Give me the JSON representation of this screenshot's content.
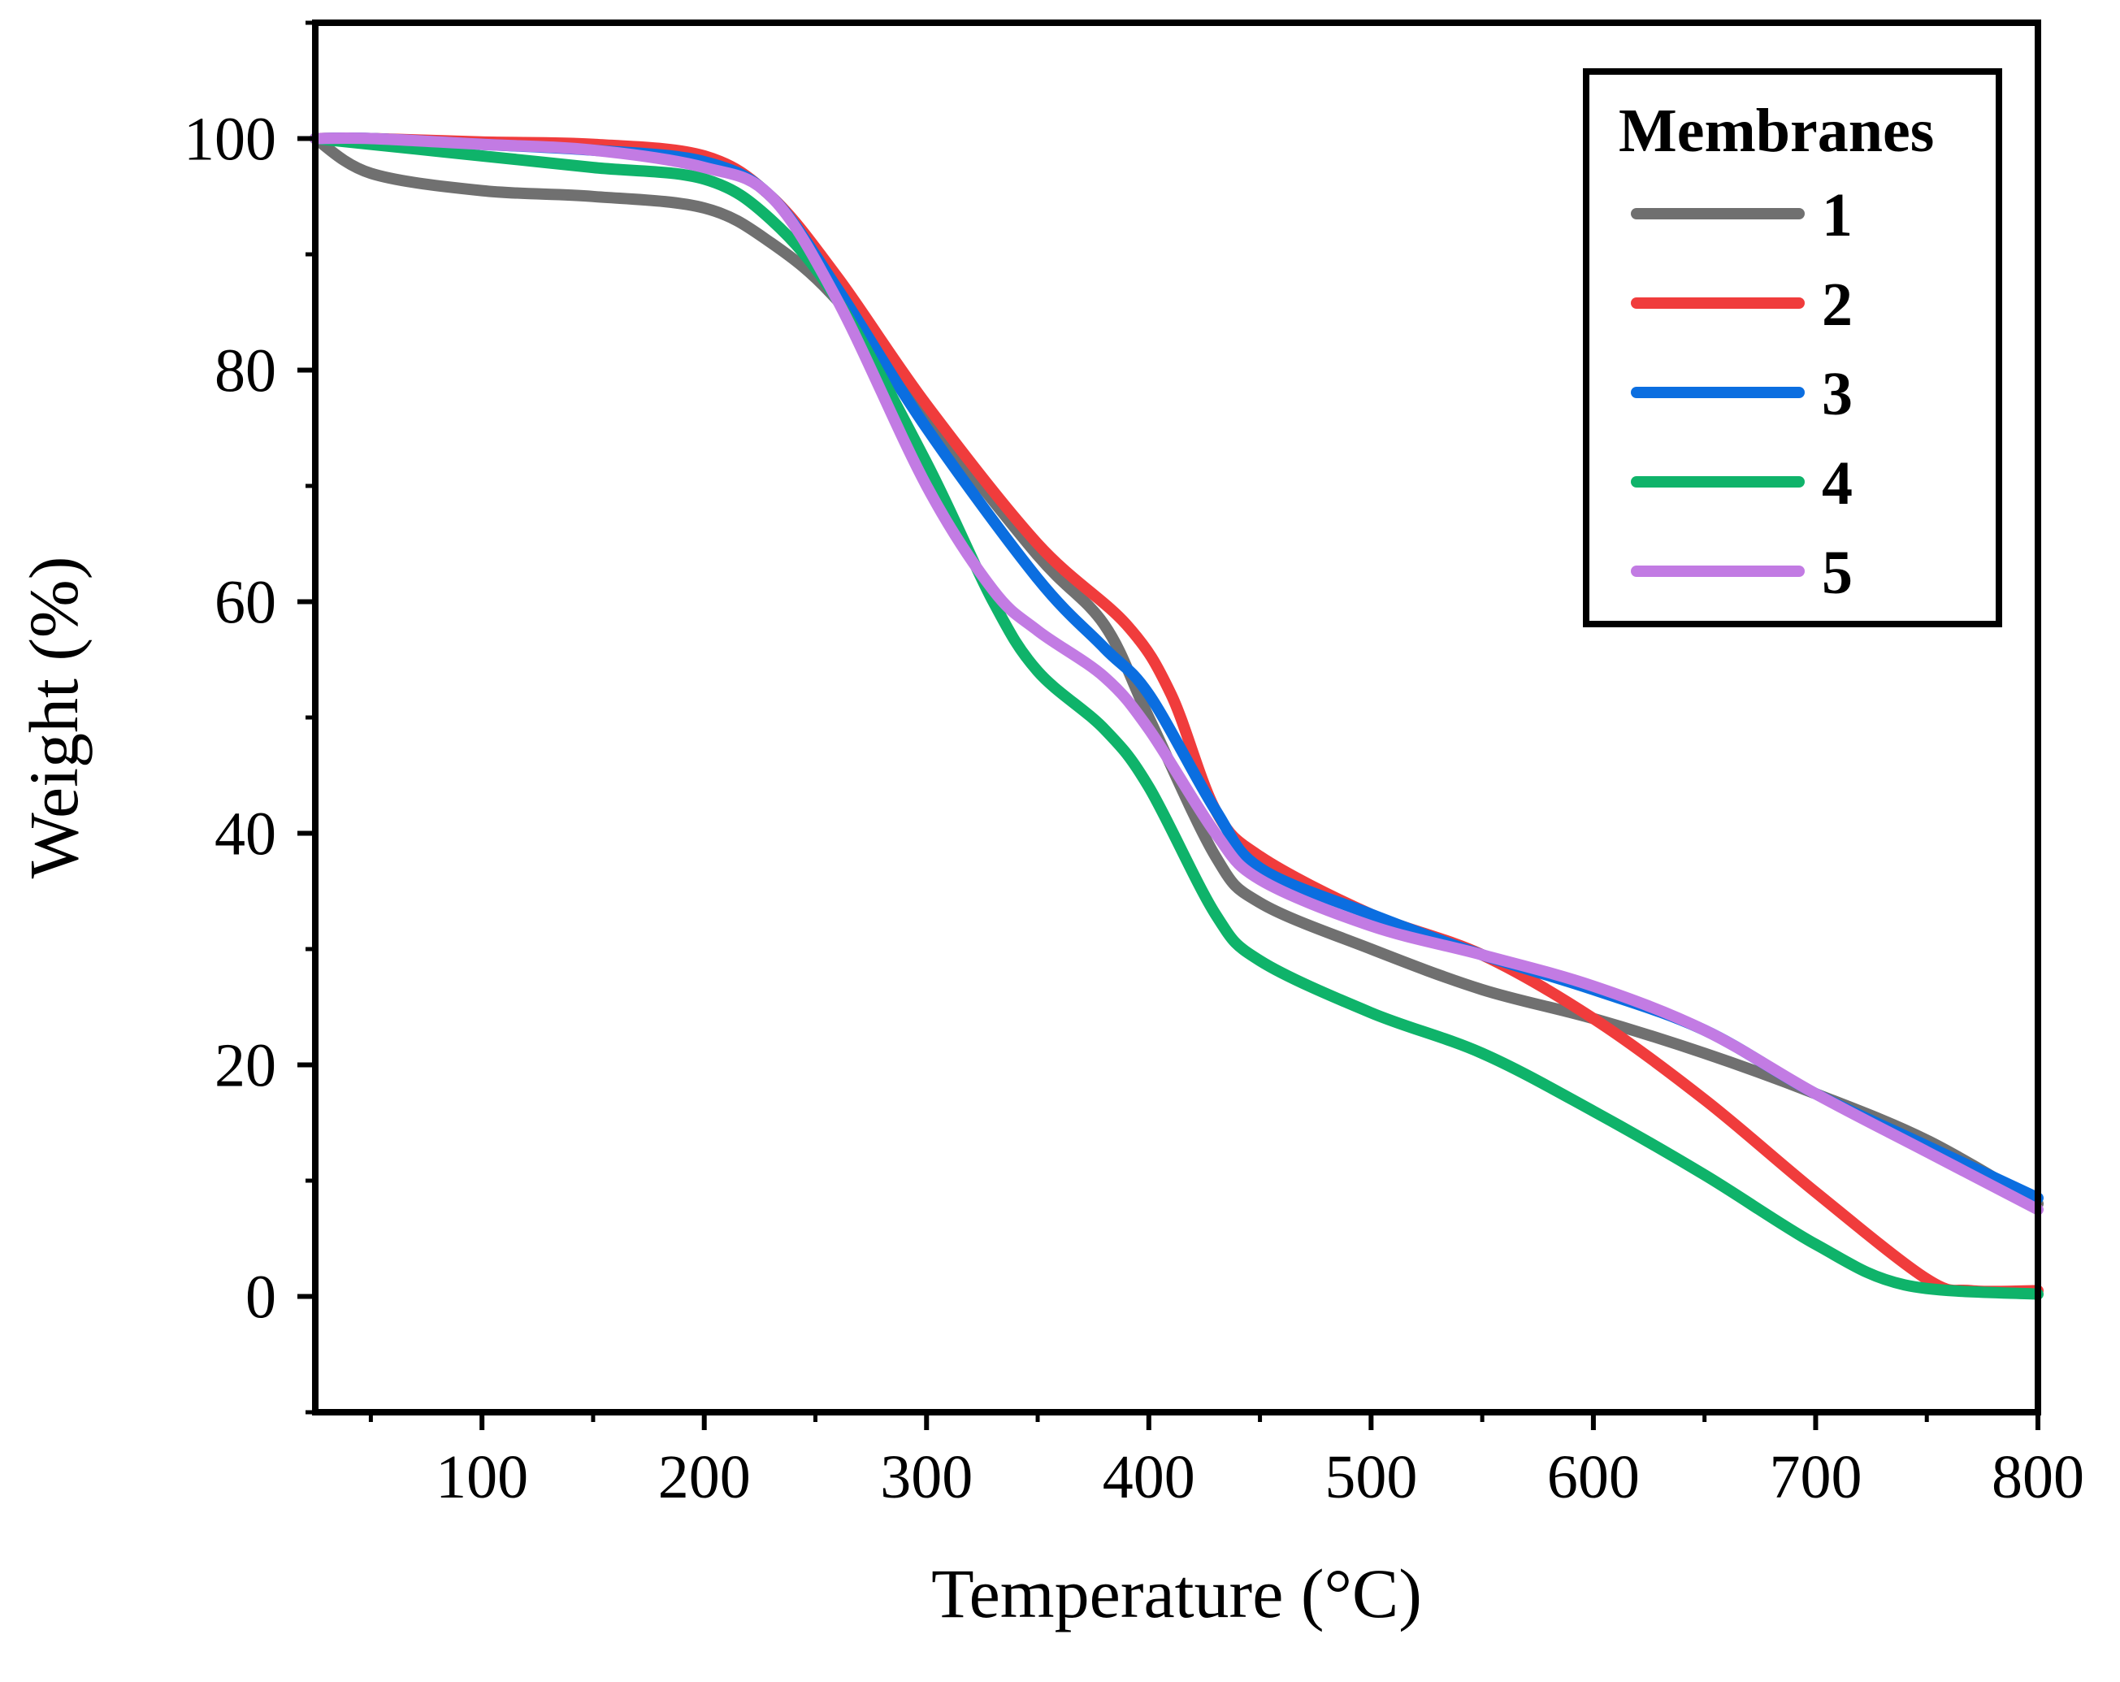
{
  "chart_data": {
    "type": "line",
    "xlabel": "Temperature (°C)",
    "ylabel": "Weight (%)",
    "xlim": [
      25,
      800
    ],
    "ylim": [
      -10,
      110
    ],
    "x_ticks": [
      100,
      200,
      300,
      400,
      500,
      600,
      700,
      800
    ],
    "y_ticks": [
      0,
      20,
      40,
      60,
      80,
      100
    ],
    "legend": {
      "title": "Membranes",
      "position": "top-right"
    },
    "series": [
      {
        "name": "1",
        "color": "#707070",
        "x": [
          25,
          50,
          100,
          150,
          200,
          230,
          260,
          300,
          350,
          380,
          400,
          430,
          450,
          500,
          550,
          600,
          650,
          700,
          750,
          800
        ],
        "y": [
          100,
          97,
          95.5,
          95,
          94,
          91,
          86,
          76,
          64,
          58,
          50,
          38,
          34,
          30,
          26.5,
          24,
          21,
          17.5,
          13.5,
          8
        ]
      },
      {
        "name": "2",
        "color": "#f03c3c",
        "x": [
          25,
          50,
          100,
          150,
          200,
          230,
          260,
          300,
          350,
          390,
          410,
          430,
          450,
          500,
          550,
          600,
          650,
          700,
          750,
          770,
          800
        ],
        "y": [
          100,
          100,
          99.7,
          99.5,
          98.5,
          95,
          88,
          77,
          65,
          58,
          52,
          42,
          38,
          33,
          29.5,
          24,
          17,
          9,
          1.5,
          0.5,
          0.5
        ]
      },
      {
        "name": "3",
        "color": "#0b6ee0",
        "x": [
          25,
          50,
          100,
          150,
          200,
          230,
          260,
          300,
          350,
          380,
          400,
          430,
          450,
          500,
          550,
          600,
          650,
          700,
          750,
          800
        ],
        "y": [
          100,
          100,
          99.5,
          99,
          98,
          95,
          87,
          75,
          62,
          56,
          52,
          42,
          37,
          33,
          29.5,
          26.5,
          23,
          17.5,
          13,
          8.5
        ]
      },
      {
        "name": "4",
        "color": "#0fb36a",
        "x": [
          25,
          50,
          100,
          150,
          200,
          230,
          260,
          300,
          330,
          350,
          380,
          400,
          430,
          450,
          500,
          550,
          600,
          650,
          700,
          740,
          800
        ],
        "y": [
          100,
          99.5,
          98.5,
          97.5,
          96.5,
          93,
          86,
          72,
          60,
          54,
          49,
          44,
          33,
          29,
          24.5,
          21,
          16,
          10.5,
          4.5,
          1,
          0.2
        ]
      },
      {
        "name": "5",
        "color": "#c27be3",
        "x": [
          25,
          50,
          100,
          150,
          200,
          230,
          260,
          300,
          330,
          350,
          380,
          400,
          430,
          450,
          500,
          550,
          600,
          650,
          700,
          750,
          800
        ],
        "y": [
          100,
          100,
          99.5,
          99,
          97.5,
          95,
          86,
          70,
          61,
          57.5,
          53.5,
          49,
          40,
          36,
          32,
          29.5,
          26.8,
          23,
          17.5,
          12.5,
          7.5
        ]
      }
    ]
  }
}
